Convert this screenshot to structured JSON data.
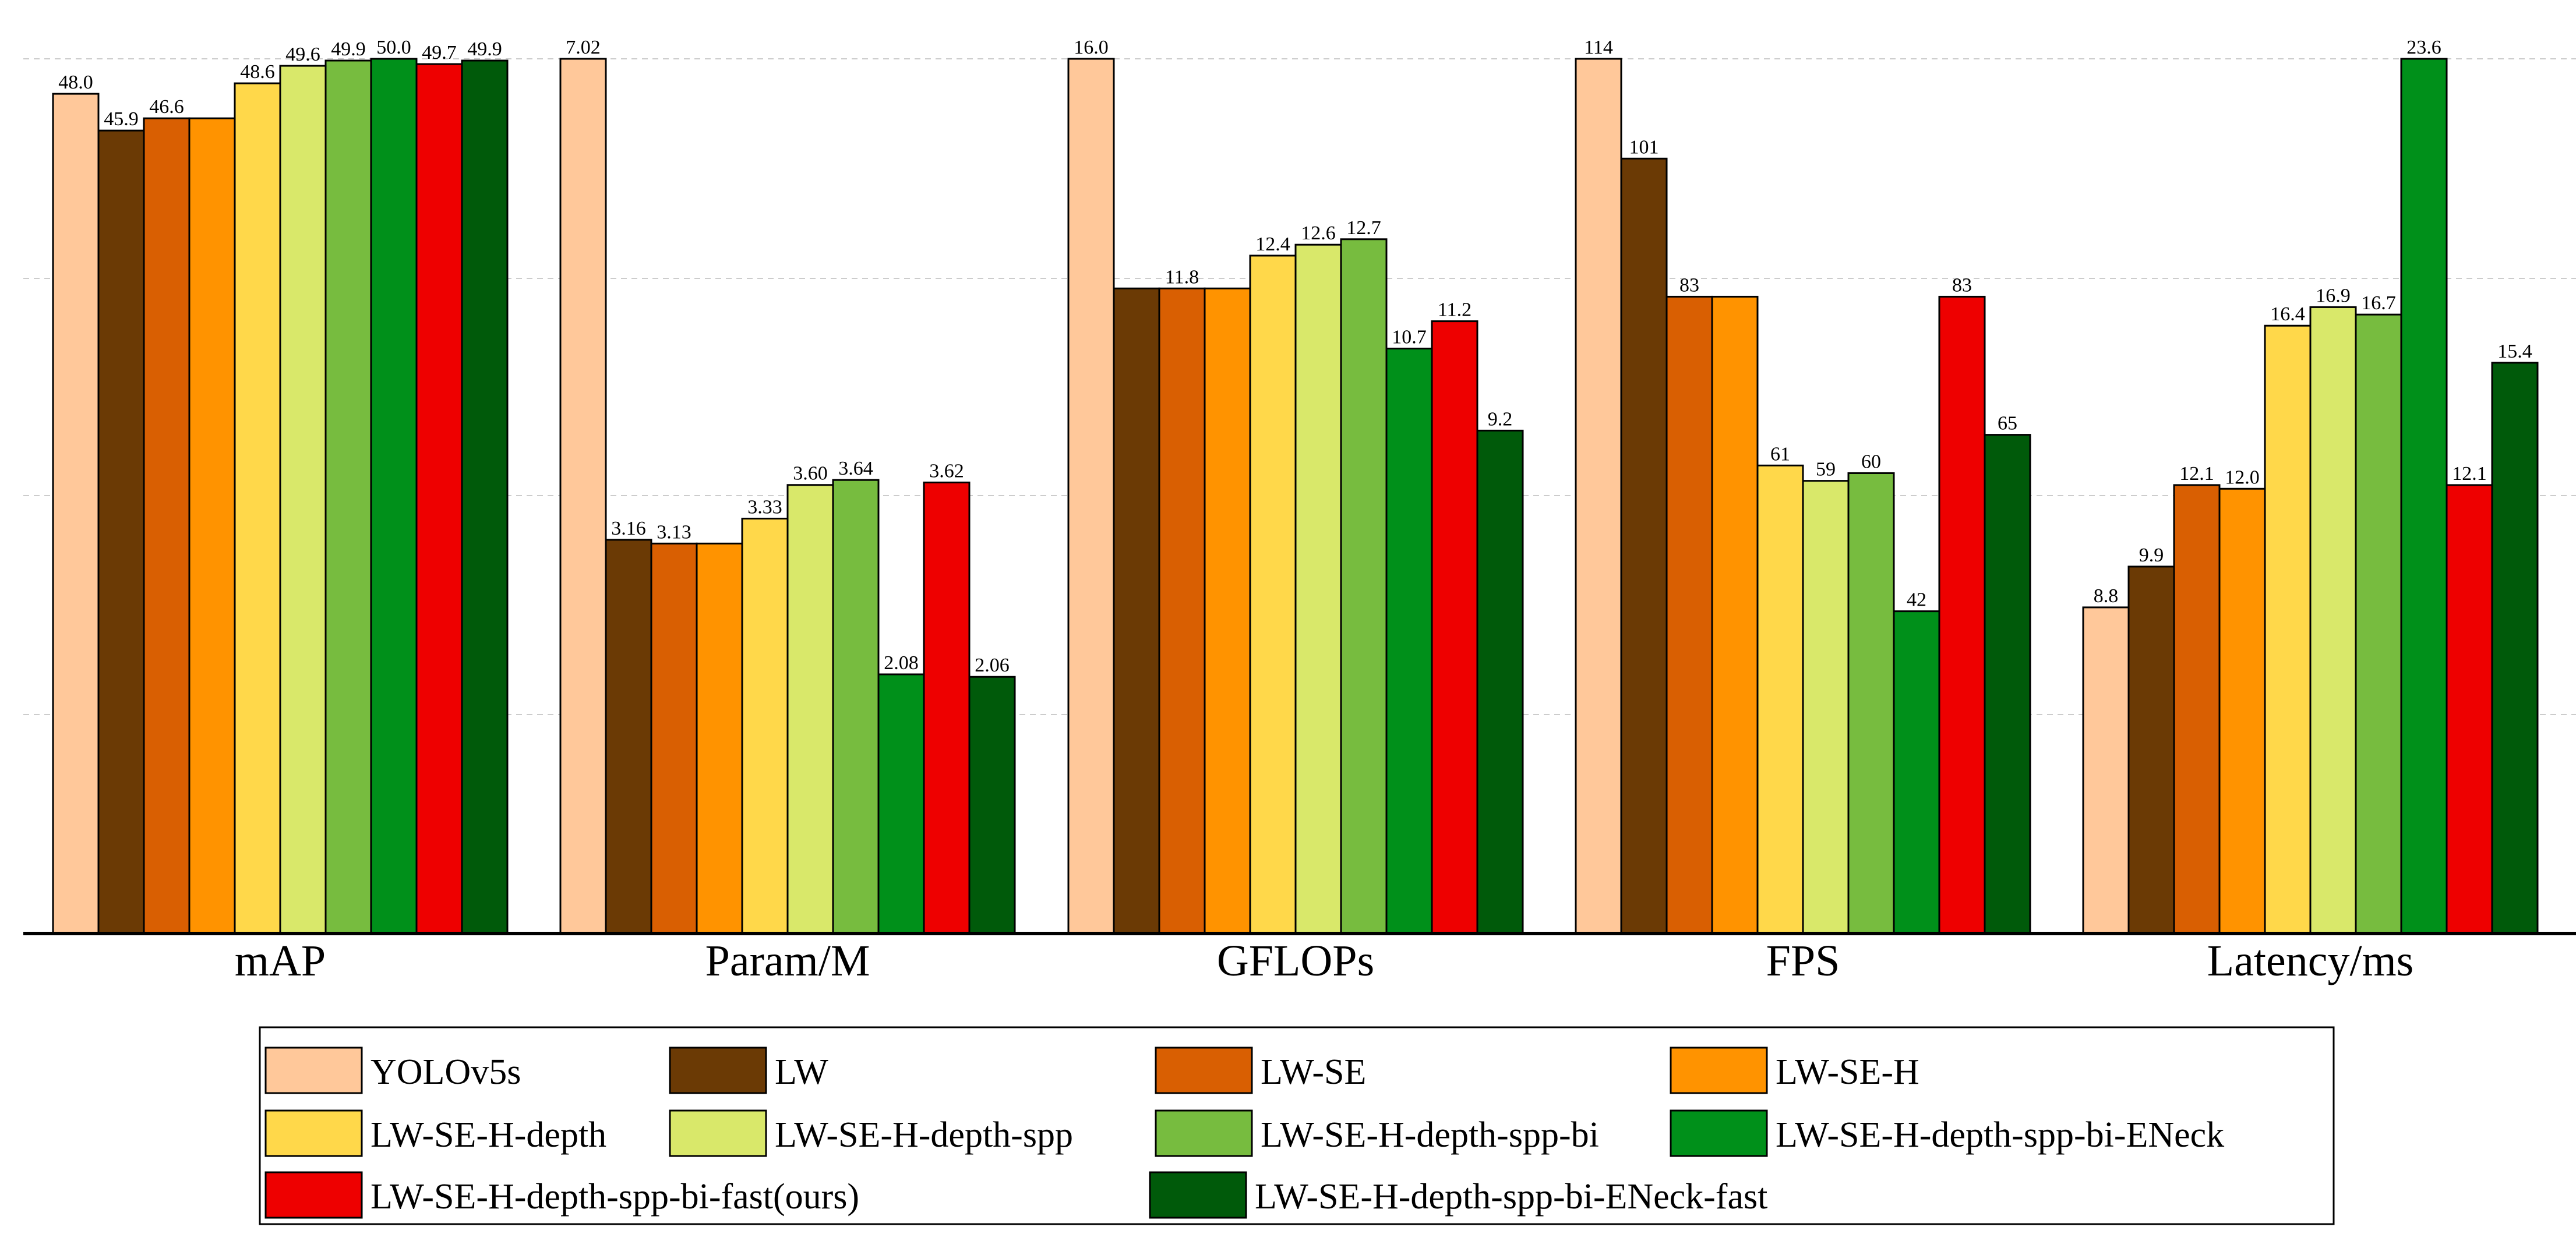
{
  "chart_data": {
    "type": "bar",
    "normalization": "each group scaled relative to its own maximum value",
    "categories": [
      "mAP",
      "Param/M",
      "GFLOPs",
      "FPS",
      "Latency/ms"
    ],
    "series": [
      {
        "name": "YOLOv5s",
        "color": "#FFC89A",
        "values": [
          48.0,
          7.02,
          16.0,
          114,
          8.8
        ],
        "labels": [
          "48.0",
          "7.02",
          "16.0",
          "114",
          "8.8"
        ]
      },
      {
        "name": "LW",
        "color": "#6B3A05",
        "values": [
          45.9,
          3.16,
          11.8,
          101,
          9.9
        ],
        "labels": [
          "45.9",
          "3.16",
          "",
          "101",
          "9.9"
        ]
      },
      {
        "name": "LW-SE",
        "color": "#D95F02",
        "values": [
          46.6,
          3.13,
          11.8,
          83,
          12.1
        ],
        "labels": [
          "46.6",
          "3.13",
          "11.8",
          "83",
          "12.1"
        ]
      },
      {
        "name": "LW-SE-H",
        "color": "#FF9300",
        "values": [
          46.6,
          3.13,
          11.8,
          83,
          12.0
        ],
        "labels": [
          "",
          "",
          "",
          "",
          "12.0"
        ]
      },
      {
        "name": "LW-SE-H-depth",
        "color": "#FFD84A",
        "values": [
          48.6,
          3.33,
          12.4,
          61,
          16.4
        ],
        "labels": [
          "48.6",
          "3.33",
          "12.4",
          "61",
          "16.4"
        ]
      },
      {
        "name": "LW-SE-H-depth-spp",
        "color": "#D9E86A",
        "values": [
          49.6,
          3.6,
          12.6,
          59,
          16.9
        ],
        "labels": [
          "49.6",
          "3.60",
          "12.6",
          "59",
          "16.9"
        ]
      },
      {
        "name": "LW-SE-H-depth-spp-bi",
        "color": "#77BC3F",
        "values": [
          49.9,
          3.64,
          12.7,
          60,
          16.7
        ],
        "labels": [
          "49.9",
          "3.64",
          "12.7",
          "60",
          "16.7"
        ]
      },
      {
        "name": "LW-SE-H-depth-spp-bi-ENeck",
        "color": "#00901A",
        "values": [
          50.0,
          2.08,
          10.7,
          42,
          23.6
        ],
        "labels": [
          "50.0",
          "2.08",
          "10.7",
          "42",
          "23.6"
        ]
      },
      {
        "name": "LW-SE-H-depth-spp-bi-fast(ours)",
        "color": "#EE0000",
        "values": [
          49.7,
          3.62,
          11.2,
          83,
          12.1
        ],
        "labels": [
          "49.7",
          "3.62",
          "11.2",
          "83",
          "12.1"
        ]
      },
      {
        "name": "LW-SE-H-depth-spp-bi-ENeck-fast",
        "color": "#005A0A",
        "values": [
          49.9,
          2.06,
          9.2,
          65,
          15.4
        ],
        "labels": [
          "49.9",
          "2.06",
          "9.2",
          "65",
          "15.4"
        ]
      }
    ],
    "title": "",
    "xlabel": "",
    "ylabel": "",
    "ylim": [
      0,
      1
    ],
    "grid": "horizontal dashed",
    "legend_position": "bottom"
  }
}
